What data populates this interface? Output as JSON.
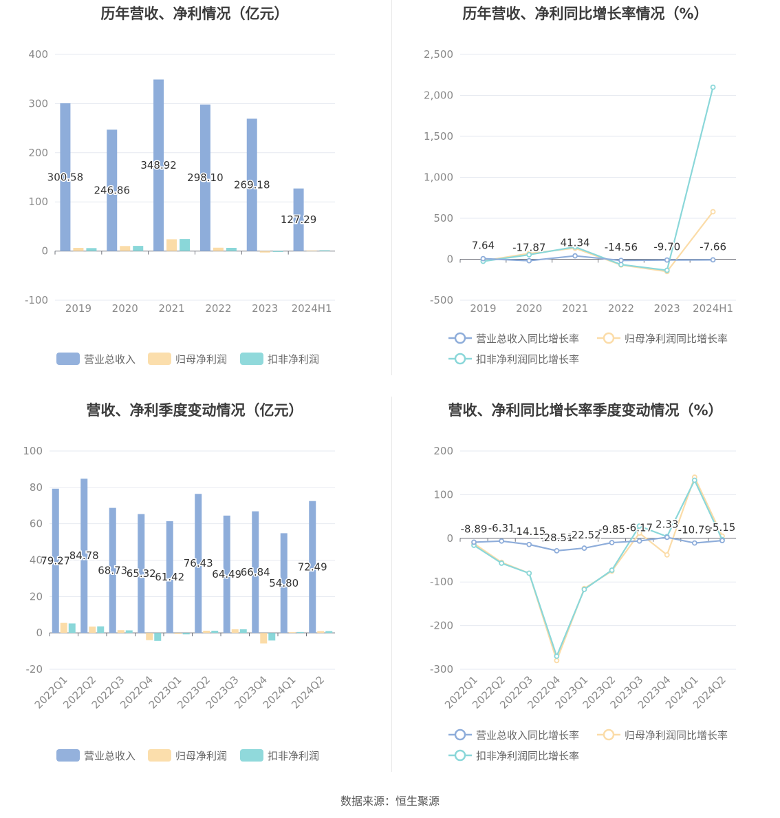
{
  "source": "数据来源：恒生聚源",
  "colors": {
    "revenue": "#8eadda",
    "parent_profit": "#fbdca8",
    "deducted_profit": "#8ad7d9",
    "grid": "#e6e9f0",
    "axis_text": "#8a8a8a",
    "label_text": "#333333"
  },
  "chart_data": [
    {
      "type": "bar",
      "title": "历年营收、净利情况（亿元）",
      "categories": [
        "2019",
        "2020",
        "2021",
        "2022",
        "2023",
        "2024H1"
      ],
      "ylim": [
        -100,
        400
      ],
      "yticks": [
        "400",
        "300",
        "200",
        "100",
        "0",
        "-100"
      ],
      "series": [
        {
          "name": "营业总收入",
          "values": [
            300.58,
            246.86,
            348.92,
            298.1,
            269.18,
            127.29
          ],
          "labels": [
            "300.58",
            "246.86",
            "348.92",
            "298.10",
            "269.18",
            "127.29"
          ]
        },
        {
          "name": "归母净利润",
          "values": [
            6.5,
            10.2,
            24.0,
            6.8,
            -3.0,
            1.2
          ]
        },
        {
          "name": "扣非净利润",
          "values": [
            6.0,
            10.5,
            24.5,
            6.5,
            -1.8,
            1.6
          ]
        }
      ],
      "legend": "bottom",
      "grid": true
    },
    {
      "type": "line",
      "title": "历年营收、净利同比增长率情况（%）",
      "categories": [
        "2019",
        "2020",
        "2021",
        "2022",
        "2023",
        "2024H1"
      ],
      "ylim": [
        -500,
        2500
      ],
      "yticks": [
        "2,500",
        "2,000",
        "1,500",
        "1,000",
        "500",
        "0",
        "-500"
      ],
      "series": [
        {
          "name": "营业总收入同比增长率",
          "values": [
            7.64,
            -17.87,
            41.34,
            -14.56,
            -9.7,
            -7.66
          ],
          "labels": [
            "7.64",
            "-17.87",
            "41.34",
            "-14.56",
            "-9.70",
            "-7.66"
          ]
        },
        {
          "name": "归母净利润同比增长率",
          "values": [
            -20,
            70,
            135,
            -70,
            -150,
            580
          ]
        },
        {
          "name": "扣非净利润同比增长率",
          "values": [
            -25,
            55,
            150,
            -65,
            -135,
            2100
          ]
        }
      ],
      "legend": "bottom",
      "grid": true
    },
    {
      "type": "bar",
      "title": "营收、净利季度变动情况（亿元）",
      "categories": [
        "2022Q1",
        "2022Q2",
        "2022Q3",
        "2022Q4",
        "2023Q1",
        "2023Q2",
        "2023Q3",
        "2023Q4",
        "2024Q1",
        "2024Q2"
      ],
      "ylim": [
        -20,
        100
      ],
      "yticks": [
        "100",
        "80",
        "60",
        "40",
        "20",
        "0",
        "-20"
      ],
      "series": [
        {
          "name": "营业总收入",
          "values": [
            79.27,
            84.78,
            68.73,
            65.32,
            61.42,
            76.43,
            64.49,
            66.84,
            54.8,
            72.49
          ],
          "labels": [
            "79.27",
            "84.78",
            "68.73",
            "65.32",
            "61.42",
            "76.43",
            "64.49",
            "66.84",
            "54.80",
            "72.49"
          ]
        },
        {
          "name": "归母净利润",
          "values": [
            5.5,
            3.5,
            1.5,
            -4.0,
            -0.6,
            1.2,
            2.0,
            -5.8,
            0.4,
            1.0
          ]
        },
        {
          "name": "扣非净利润",
          "values": [
            5.2,
            3.6,
            1.4,
            -4.4,
            -0.8,
            1.2,
            2.0,
            -4.2,
            0.5,
            1.0
          ]
        }
      ],
      "legend": "bottom",
      "grid": true
    },
    {
      "type": "line",
      "title": "营收、净利同比增长率季度变动情况（%）",
      "categories": [
        "2022Q1",
        "2022Q2",
        "2022Q3",
        "2022Q4",
        "2023Q1",
        "2023Q2",
        "2023Q3",
        "2023Q4",
        "2024Q1",
        "2024Q2"
      ],
      "ylim": [
        -300,
        200
      ],
      "yticks": [
        "200",
        "100",
        "0",
        "-100",
        "-200",
        "-300"
      ],
      "series": [
        {
          "name": "营业总收入同比增长率",
          "values": [
            -8.89,
            -6.31,
            -14.15,
            -28.51,
            -22.52,
            -9.85,
            -6.17,
            2.33,
            -10.79,
            -5.15
          ],
          "labels": [
            "-8.89",
            "-6.31",
            "-14.15",
            "-28.51",
            "-22.52",
            "-9.85",
            "-6.17",
            "2.33",
            "-10.79",
            "-5.15"
          ]
        },
        {
          "name": "归母净利润同比增长率",
          "values": [
            -12,
            -55,
            -80,
            -280,
            -115,
            -75,
            12,
            -38,
            140,
            5
          ]
        },
        {
          "name": "扣非净利润同比增长率",
          "values": [
            -16,
            -57,
            -80,
            -270,
            -117,
            -73,
            28,
            4,
            133,
            -3
          ]
        }
      ],
      "legend": "bottom",
      "grid": true
    }
  ]
}
